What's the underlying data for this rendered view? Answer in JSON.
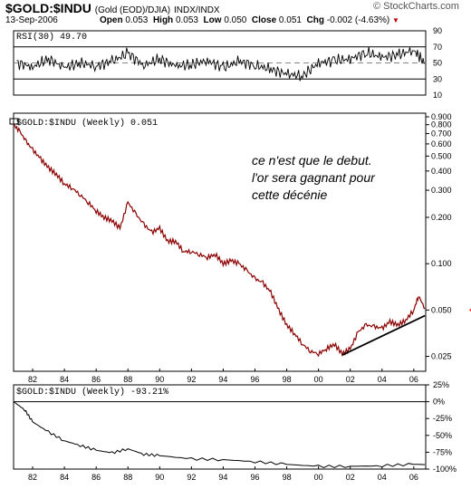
{
  "header": {
    "symbol": "$GOLD:$INDU",
    "description": "(Gold (EOD)/DJIA)",
    "exchange": "INDX/INDX",
    "date": "13-Sep-2006",
    "open_label": "Open",
    "open": "0.053",
    "high_label": "High",
    "high": "0.053",
    "low_label": "Low",
    "low": "0.050",
    "close_label": "Close",
    "close": "0.051",
    "chg_label": "Chg",
    "chg": "-0.002 (-4.63%)",
    "chg_arrow": "▼",
    "brand": "© StockCharts.com"
  },
  "colors": {
    "price_line": "#8b0000",
    "frame": "#000000",
    "grid": "#cccccc",
    "arrow": "#e8211a",
    "trendline": "#000000"
  },
  "annotation": [
    "ce n'est que le debut.",
    "l'or sera gagnant pour",
    "cette décénie"
  ],
  "chart_data": [
    {
      "type": "line",
      "label": "RSI(30) 49.70",
      "yticks": [
        "90",
        "70",
        "50",
        "30",
        "10"
      ],
      "ylim": [
        10,
        90
      ],
      "reference_lines": [
        70,
        30
      ],
      "midline": 50,
      "x": [
        1981,
        1982,
        1983,
        1984,
        1985,
        1986,
        1987,
        1988,
        1989,
        1990,
        1991,
        1992,
        1993,
        1994,
        1995,
        1996,
        1997,
        1998,
        1999,
        2000,
        2001,
        2002,
        2003,
        2004,
        2005,
        2006,
        2006.7
      ],
      "values": [
        50,
        45,
        55,
        44,
        50,
        46,
        52,
        62,
        47,
        55,
        46,
        48,
        53,
        44,
        52,
        47,
        42,
        36,
        34,
        50,
        53,
        55,
        63,
        57,
        60,
        66,
        49.7
      ]
    },
    {
      "type": "line",
      "scale": "log",
      "label": "$GOLD:$INDU (Weekly) 0.051",
      "yticks": [
        "0.900",
        "0.800",
        "0.700",
        "0.600",
        "0.500",
        "0.400",
        "0.300",
        "0.200",
        "0.100",
        "0.050",
        "0.025"
      ],
      "ylim": [
        0.02,
        0.95
      ],
      "xticks": [
        "82",
        "84",
        "86",
        "88",
        "90",
        "92",
        "94",
        "96",
        "98",
        "00",
        "02",
        "04",
        "06"
      ],
      "x": [
        1980.8,
        1981.2,
        1981.6,
        1982.0,
        1982.5,
        1983.0,
        1983.5,
        1984.0,
        1984.5,
        1985.0,
        1985.5,
        1986.0,
        1986.5,
        1987.0,
        1987.5,
        1988.0,
        1988.5,
        1989.0,
        1989.5,
        1990.0,
        1990.5,
        1991.0,
        1991.5,
        1992.0,
        1992.5,
        1993.0,
        1993.5,
        1994.0,
        1994.5,
        1995.0,
        1995.5,
        1996.0,
        1996.5,
        1997.0,
        1997.5,
        1998.0,
        1998.5,
        1999.0,
        1999.5,
        2000.0,
        2000.5,
        2001.0,
        2001.5,
        2002.0,
        2002.5,
        2003.0,
        2003.5,
        2004.0,
        2004.5,
        2005.0,
        2005.5,
        2006.0,
        2006.3,
        2006.7
      ],
      "values": [
        0.8,
        0.72,
        0.62,
        0.55,
        0.48,
        0.42,
        0.38,
        0.33,
        0.31,
        0.28,
        0.25,
        0.22,
        0.2,
        0.19,
        0.17,
        0.25,
        0.21,
        0.18,
        0.16,
        0.17,
        0.14,
        0.14,
        0.12,
        0.12,
        0.115,
        0.11,
        0.115,
        0.1,
        0.105,
        0.1,
        0.09,
        0.08,
        0.075,
        0.065,
        0.05,
        0.04,
        0.035,
        0.03,
        0.027,
        0.026,
        0.028,
        0.03,
        0.026,
        0.028,
        0.036,
        0.04,
        0.039,
        0.038,
        0.042,
        0.04,
        0.043,
        0.05,
        0.062,
        0.051
      ],
      "trendline": {
        "x": [
          2001.5,
          2006.7
        ],
        "values": [
          0.0255,
          0.046
        ]
      },
      "marker_value": 0.05
    },
    {
      "type": "line",
      "label": "$GOLD:$INDU (Weekly) -93.21%",
      "yticks": [
        "25%",
        "0%",
        "-25%",
        "-50%",
        "-75%",
        "-100%"
      ],
      "ylim": [
        -100,
        25
      ],
      "xticks": [
        "82",
        "84",
        "86",
        "88",
        "90",
        "92",
        "94",
        "96",
        "98",
        "00",
        "02",
        "04",
        "06"
      ],
      "x": [
        1980.8,
        1981.5,
        1982.0,
        1983.0,
        1984.0,
        1985.0,
        1986.0,
        1987.0,
        1988.0,
        1989.0,
        1990.0,
        1992.0,
        1994.0,
        1996.0,
        1998.0,
        2000.0,
        2002.0,
        2004.0,
        2006.0,
        2006.7
      ],
      "values": [
        0,
        -12,
        -30,
        -45,
        -58,
        -65,
        -72,
        -76,
        -70,
        -78,
        -80,
        -85,
        -86,
        -89,
        -93,
        -96,
        -96,
        -95,
        -93,
        -93.21
      ]
    }
  ]
}
